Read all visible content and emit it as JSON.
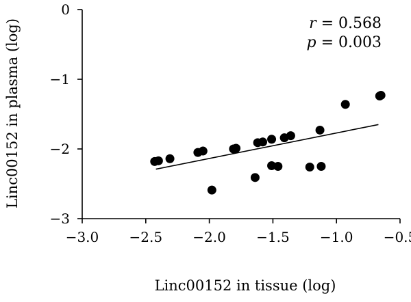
{
  "chart_data": {
    "type": "scatter",
    "title": "",
    "xlabel": "Linc00152 in tissue (log)",
    "ylabel": "Linc00152 in plasma (log)",
    "xlim": [
      -3.0,
      -0.5
    ],
    "ylim": [
      -3,
      0
    ],
    "xticks": [
      -3.0,
      -2.5,
      -2.0,
      -1.5,
      -1.0,
      -0.5
    ],
    "xtick_labels": [
      "−3.0",
      "−2.5",
      "−2.0",
      "−1.5",
      "−1.0",
      "−0.5"
    ],
    "yticks": [
      0,
      -1,
      -2,
      -3
    ],
    "ytick_labels": [
      "0",
      "−1",
      "−2",
      "−3"
    ],
    "grid": false,
    "annotations": {
      "r_symbol": "r",
      "r_text": " = 0.568",
      "p_symbol": "p",
      "p_text": " = 0.003"
    },
    "series": [
      {
        "points": [
          {
            "x": -2.43,
            "y": -2.18
          },
          {
            "x": -2.4,
            "y": -2.17
          },
          {
            "x": -2.31,
            "y": -2.14
          },
          {
            "x": -2.09,
            "y": -2.05
          },
          {
            "x": -2.05,
            "y": -2.03
          },
          {
            "x": -1.98,
            "y": -2.59
          },
          {
            "x": -1.81,
            "y": -2.0
          },
          {
            "x": -1.79,
            "y": -1.99
          },
          {
            "x": -1.64,
            "y": -2.41
          },
          {
            "x": -1.62,
            "y": -1.91
          },
          {
            "x": -1.58,
            "y": -1.9
          },
          {
            "x": -1.51,
            "y": -1.86
          },
          {
            "x": -1.51,
            "y": -2.24
          },
          {
            "x": -1.46,
            "y": -2.25
          },
          {
            "x": -1.41,
            "y": -1.84
          },
          {
            "x": -1.36,
            "y": -1.81
          },
          {
            "x": -1.21,
            "y": -2.26
          },
          {
            "x": -1.13,
            "y": -1.73
          },
          {
            "x": -1.12,
            "y": -2.25
          },
          {
            "x": -0.93,
            "y": -1.36
          },
          {
            "x": -0.66,
            "y": -1.24
          },
          {
            "x": -0.65,
            "y": -1.23
          }
        ]
      }
    ],
    "trendline": {
      "x": [
        -2.42,
        -0.67
      ],
      "y": [
        -2.29,
        -1.65
      ]
    }
  }
}
